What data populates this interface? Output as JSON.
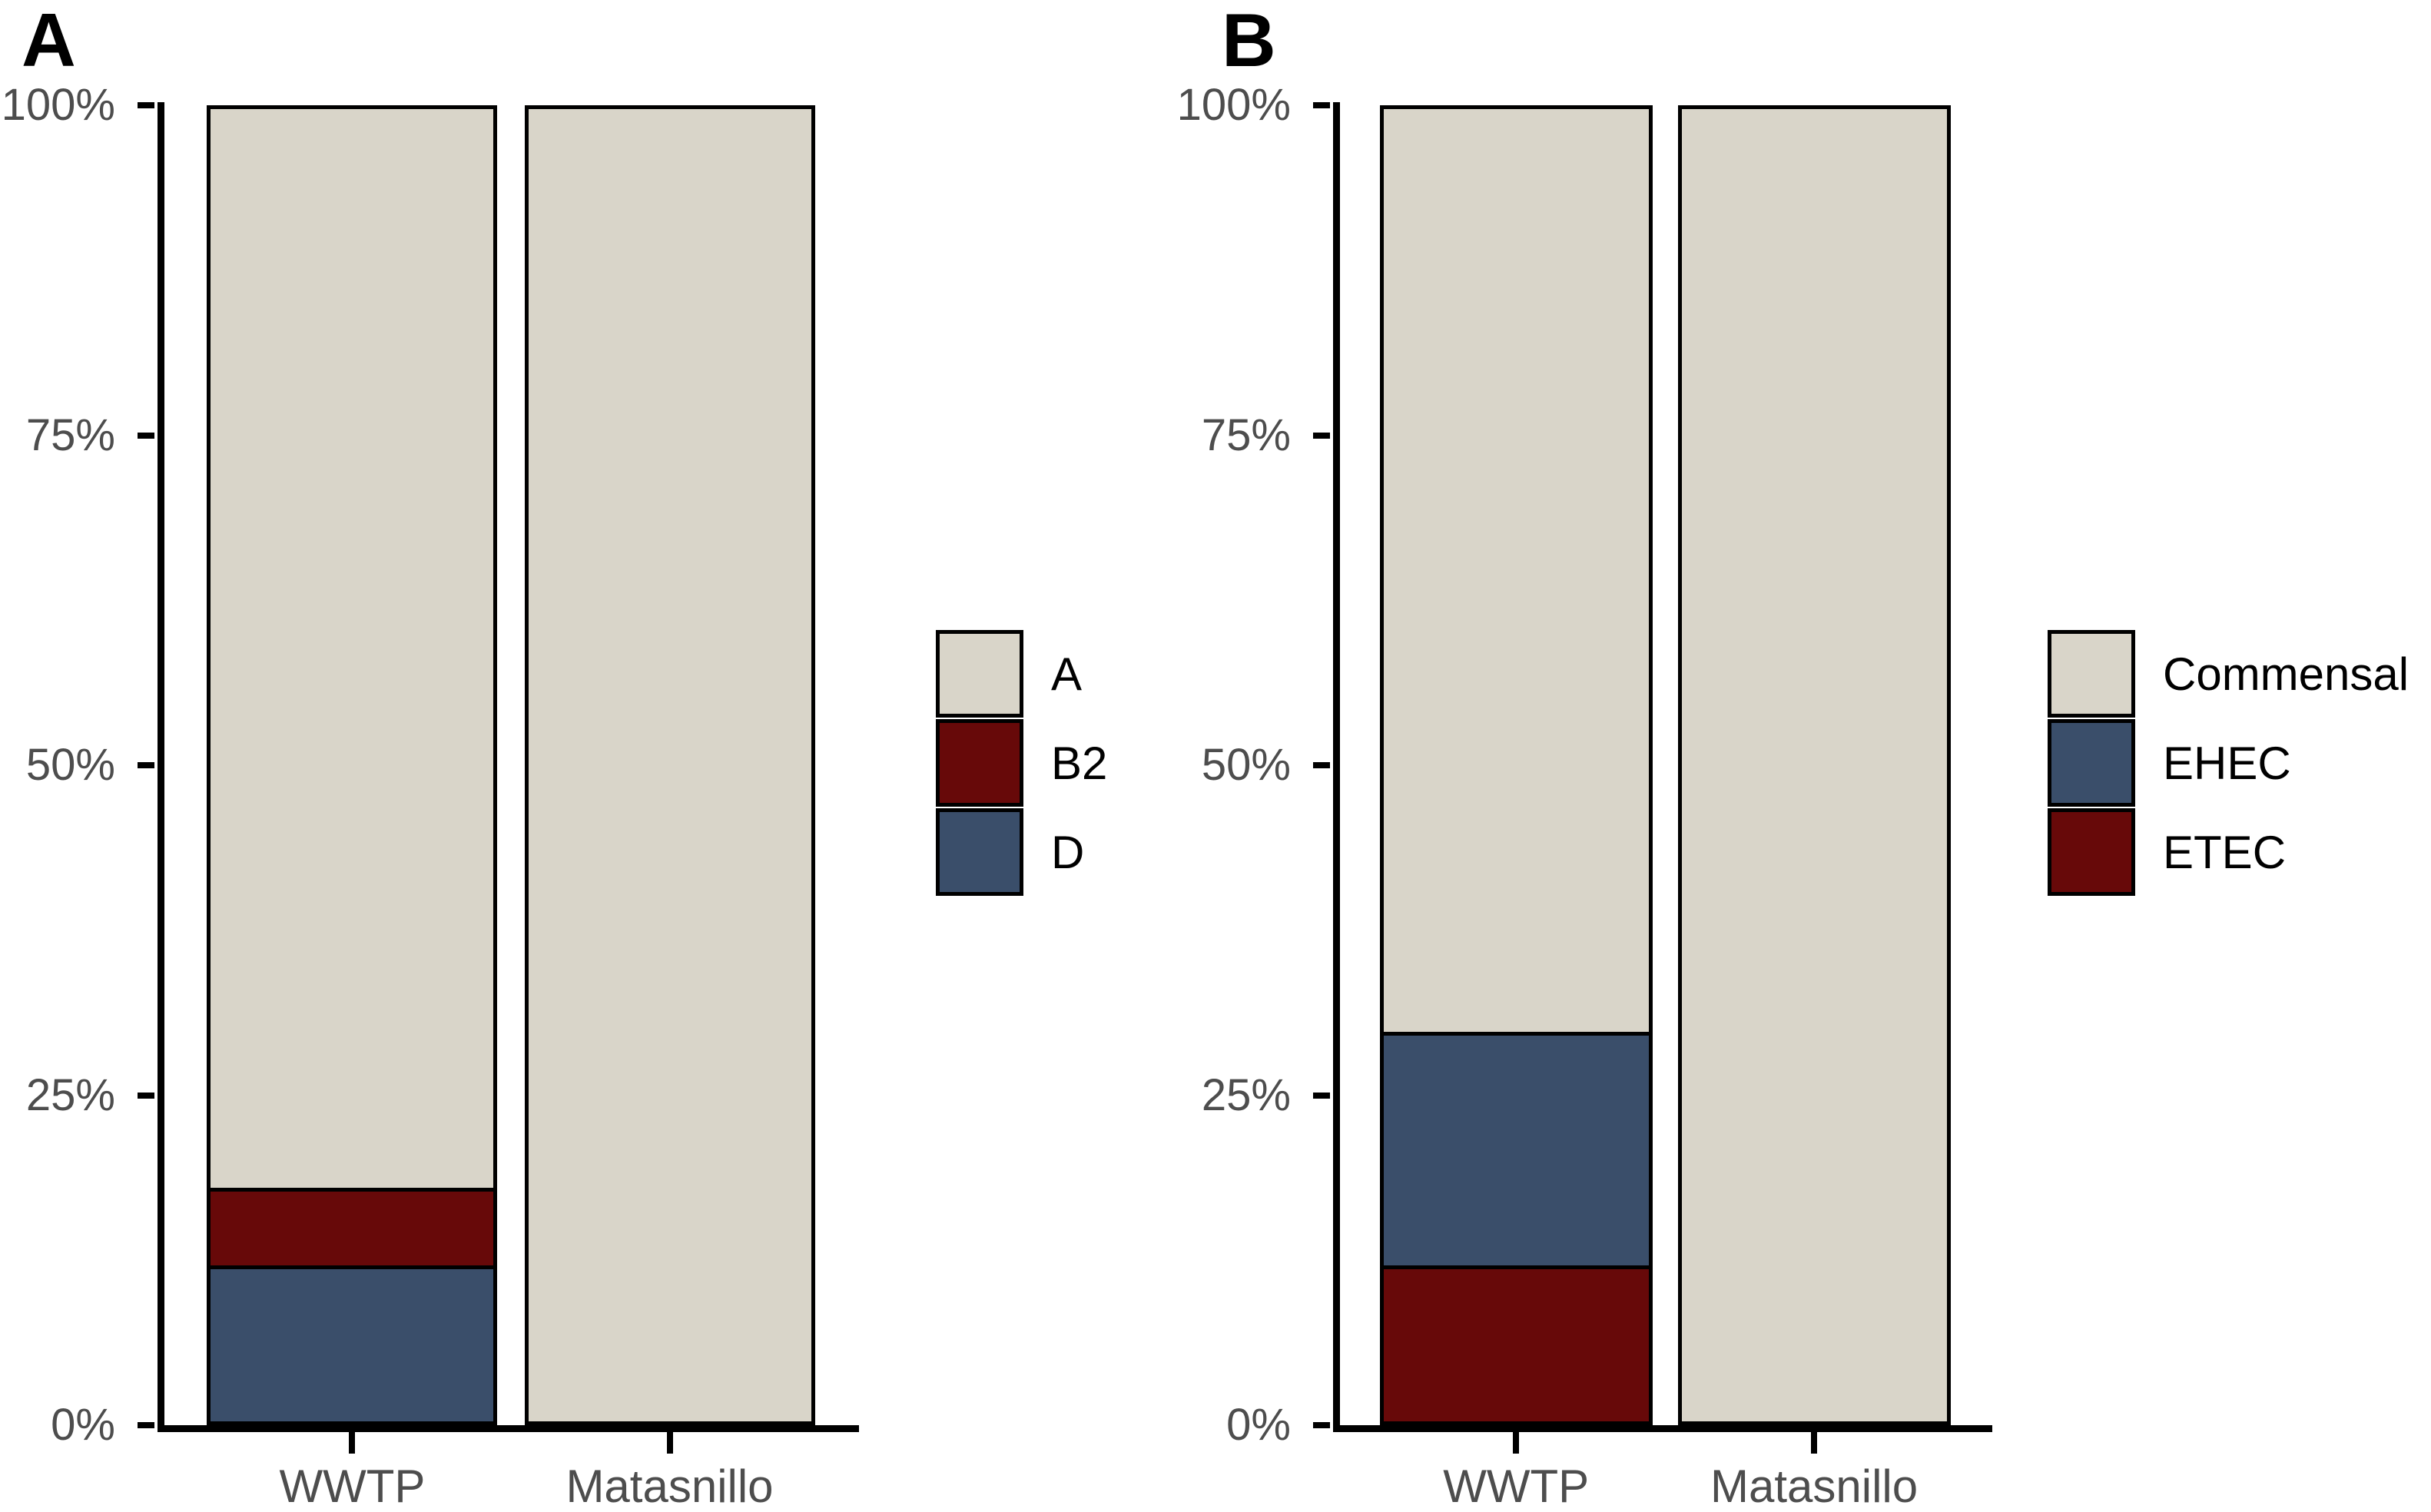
{
  "styles": {
    "background": "#ffffff",
    "axis_text_color": "#4d4d4d",
    "axis_line_color": "#000000",
    "bar_border_color": "#000000",
    "legend_text_color": "#000000",
    "beige": "#d9d5c9",
    "slate_blue": "#3a4e6a",
    "dark_red": "#670909"
  },
  "chart_data": [
    {
      "type": "bar",
      "stacked": true,
      "panel_label": "A",
      "categories": [
        "WWTP",
        "Matasnillo"
      ],
      "series": [
        {
          "name": "A",
          "color": "#d9d5c9",
          "values": [
            82.3,
            100
          ]
        },
        {
          "name": "B2",
          "color": "#670909",
          "values": [
            5.9,
            0
          ]
        },
        {
          "name": "D",
          "color": "#3a4e6a",
          "values": [
            11.8,
            0
          ]
        }
      ],
      "stack_order_bottom_to_top": [
        "D",
        "B2",
        "A"
      ],
      "y_axis": {
        "range": [
          0,
          100
        ],
        "ticks": [
          {
            "label": "0%",
            "value": 0
          },
          {
            "label": "25%",
            "value": 25
          },
          {
            "label": "50%",
            "value": 50
          },
          {
            "label": "75%",
            "value": 75
          },
          {
            "label": "100%",
            "value": 100
          }
        ]
      },
      "legend": {
        "position": "right",
        "entries": [
          "A",
          "B2",
          "D"
        ]
      },
      "grid": false,
      "xlabel": "",
      "ylabel": ""
    },
    {
      "type": "bar",
      "stacked": true,
      "panel_label": "B",
      "categories": [
        "WWTP",
        "Matasnillo"
      ],
      "series": [
        {
          "name": "Commensal",
          "color": "#d9d5c9",
          "values": [
            70.5,
            100
          ]
        },
        {
          "name": "EHEC",
          "color": "#3a4e6a",
          "values": [
            17.7,
            0
          ]
        },
        {
          "name": "ETEC",
          "color": "#670909",
          "values": [
            11.8,
            0
          ]
        }
      ],
      "stack_order_bottom_to_top": [
        "ETEC",
        "EHEC",
        "Commensal"
      ],
      "y_axis": {
        "range": [
          0,
          100
        ],
        "ticks": [
          {
            "label": "0%",
            "value": 0
          },
          {
            "label": "25%",
            "value": 25
          },
          {
            "label": "50%",
            "value": 50
          },
          {
            "label": "75%",
            "value": 75
          },
          {
            "label": "100%",
            "value": 100
          }
        ]
      },
      "legend": {
        "position": "right",
        "entries": [
          "Commensal",
          "EHEC",
          "ETEC"
        ]
      },
      "grid": false,
      "xlabel": "",
      "ylabel": ""
    }
  ]
}
